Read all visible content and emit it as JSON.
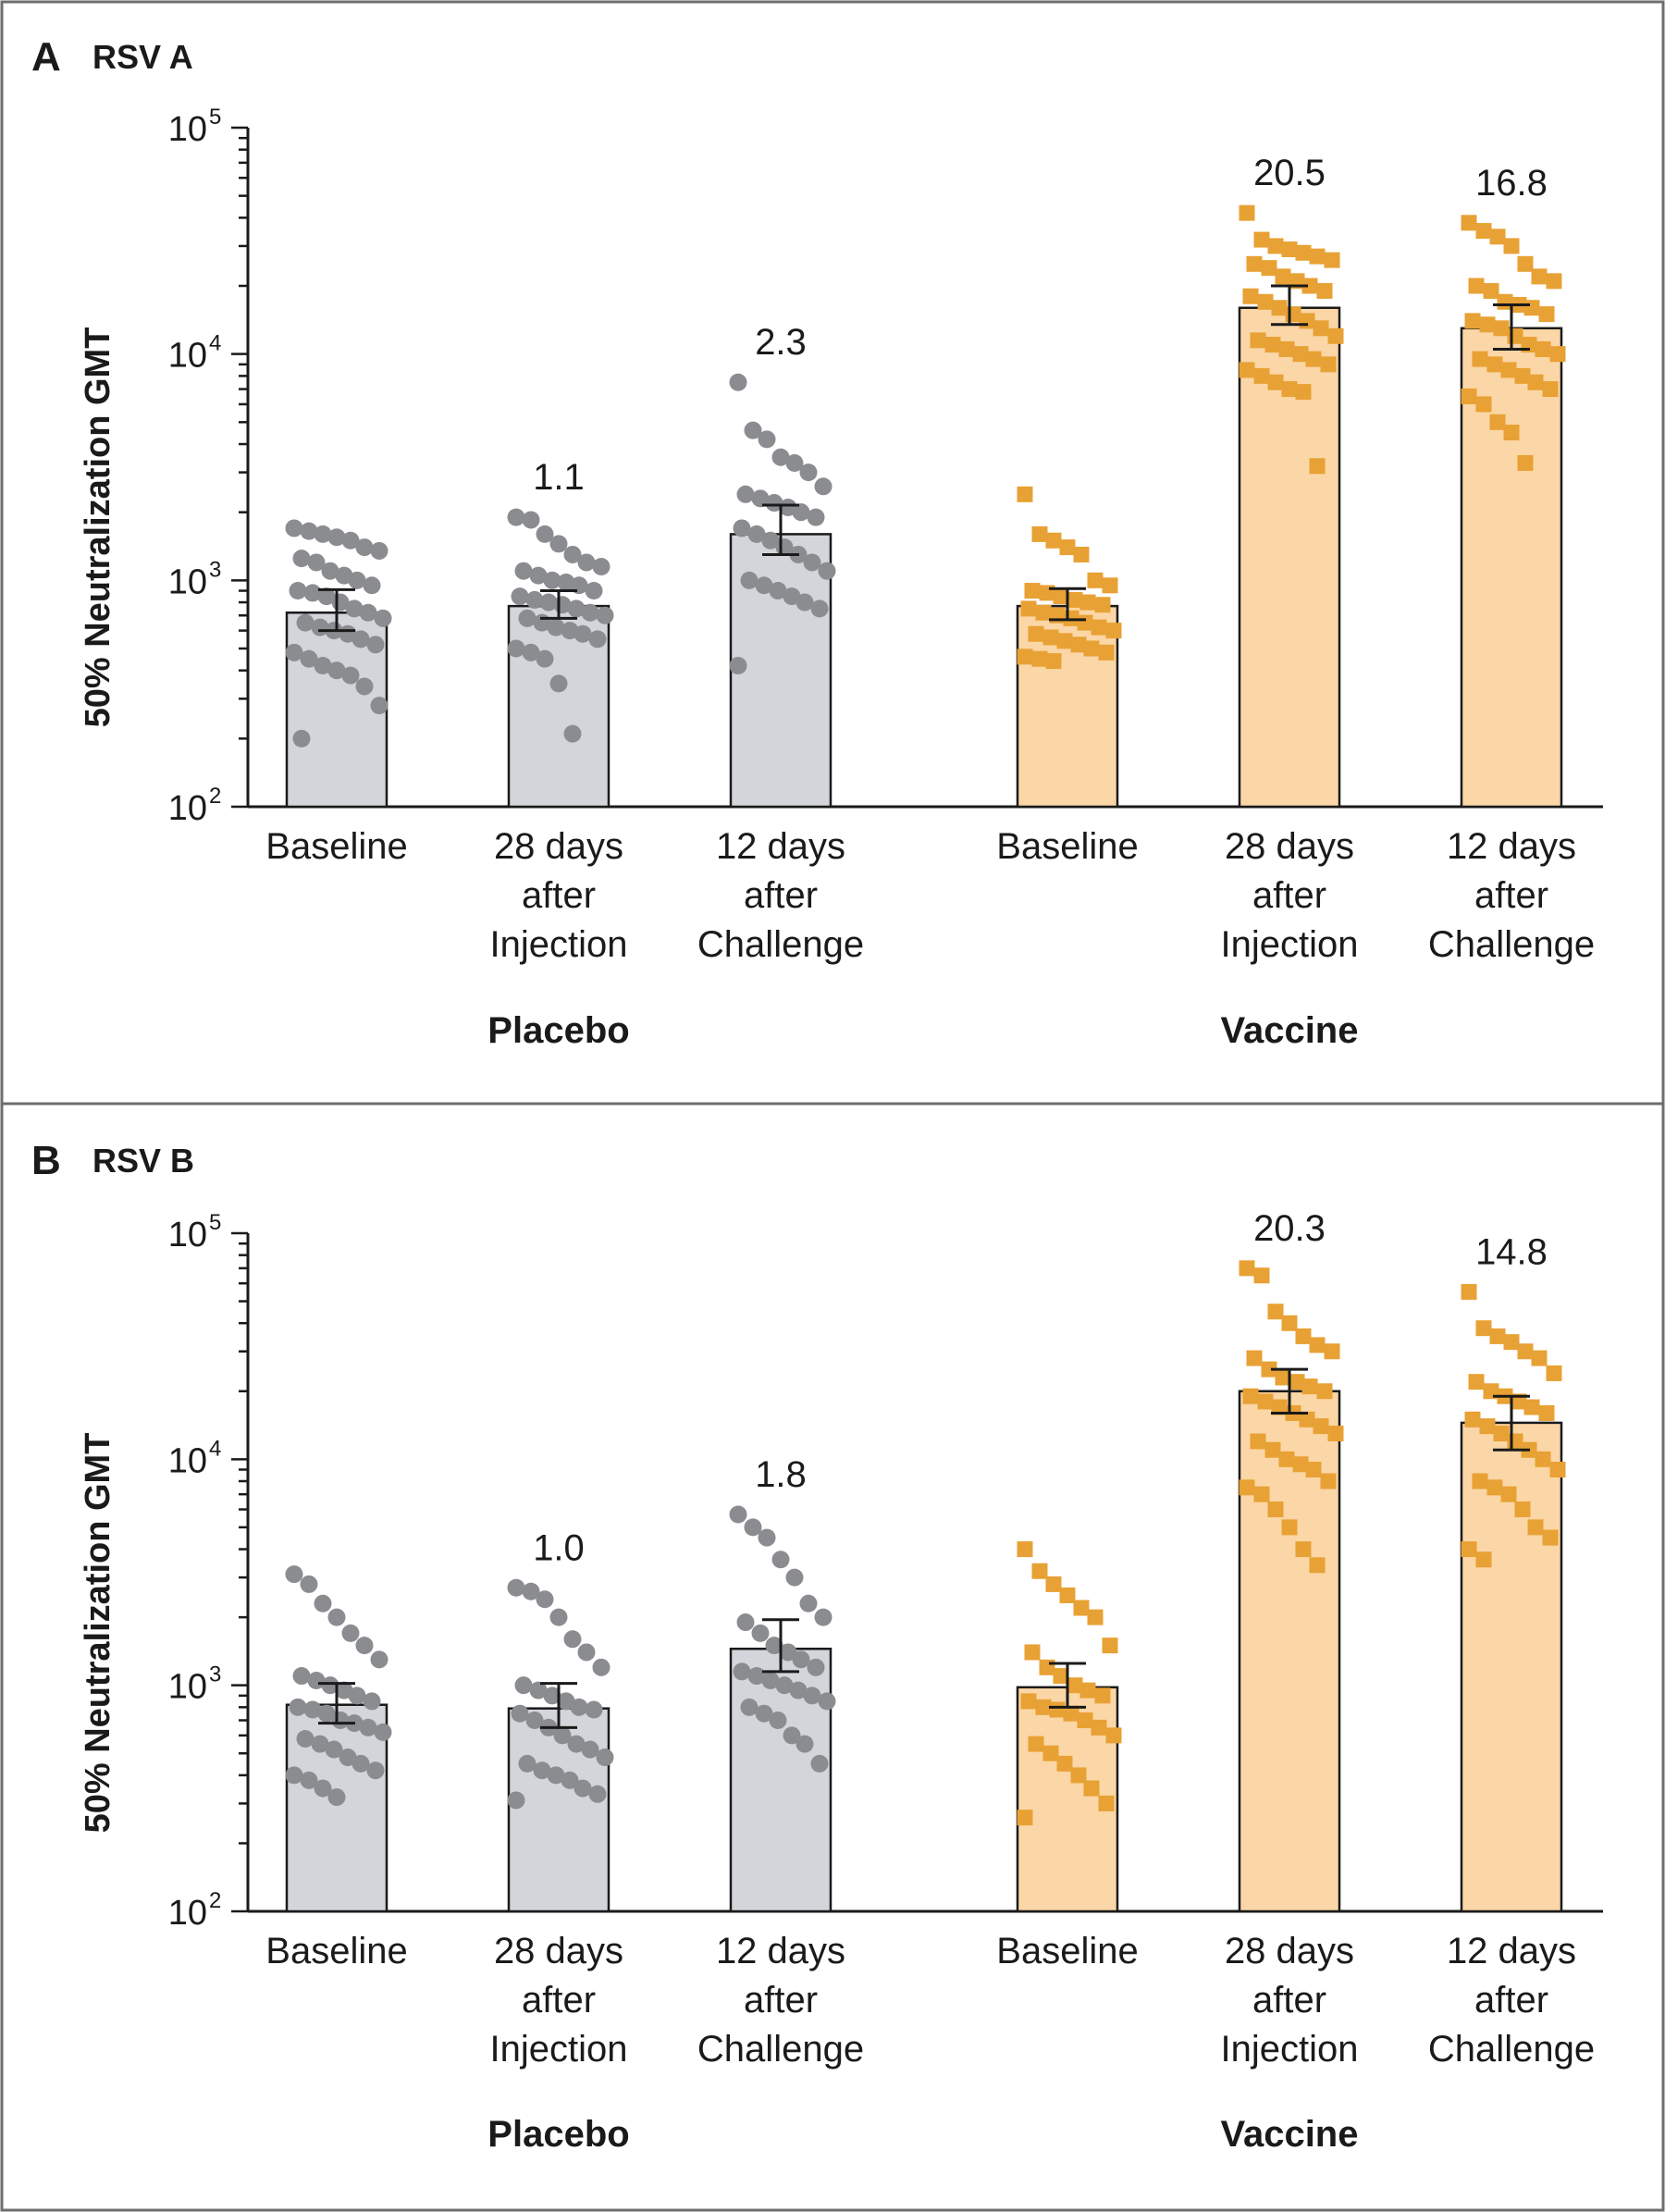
{
  "chart_data": [
    {
      "type": "bar",
      "panel_letter": "A",
      "title": "RSV A",
      "ylabel": "50% Neutralization GMT",
      "yscale": "log",
      "ylim": [
        100,
        100000
      ],
      "yticks": [
        "10",
        "10",
        "10",
        "10"
      ],
      "yticks_exponent": [
        "2",
        "3",
        "4",
        "5"
      ],
      "categories": [
        "Baseline",
        "28 days after Injection",
        "12 days after Challenge",
        "Baseline",
        "28 days after Injection",
        "12 days after Challenge"
      ],
      "category_lines": [
        [
          "Baseline"
        ],
        [
          "28 days",
          "after",
          "Injection"
        ],
        [
          "12 days",
          "after",
          "Challenge"
        ],
        [
          "Baseline"
        ],
        [
          "28 days",
          "after",
          "Injection"
        ],
        [
          "12 days",
          "after",
          "Challenge"
        ]
      ],
      "groups": [
        "Placebo",
        "Vaccine"
      ],
      "group_of_category": [
        0,
        0,
        0,
        1,
        1,
        1
      ],
      "series_colors": [
        "#d3d5db",
        "#fbd6a6"
      ],
      "point_colors": [
        "#8a8c90",
        "#e8a134"
      ],
      "point_markers": [
        "circle",
        "circle",
        "circle",
        "square",
        "square",
        "square"
      ],
      "values": [
        720,
        770,
        1600,
        770,
        16000,
        13000
      ],
      "error_low": [
        600,
        680,
        1300,
        670,
        13500,
        10500
      ],
      "error_high": [
        910,
        900,
        2150,
        920,
        20000,
        16500
      ],
      "data_labels": [
        "",
        "1.1",
        "2.3",
        "",
        "20.5",
        "16.8"
      ],
      "points": [
        [
          1700,
          1650,
          1600,
          1550,
          1500,
          1400,
          1350,
          1250,
          1200,
          1100,
          1050,
          1000,
          950,
          900,
          880,
          850,
          800,
          750,
          720,
          680,
          650,
          620,
          600,
          580,
          550,
          520,
          480,
          450,
          420,
          400,
          380,
          340,
          280,
          200
        ],
        [
          1900,
          1850,
          1600,
          1450,
          1300,
          1200,
          1150,
          1100,
          1050,
          1000,
          980,
          950,
          900,
          850,
          820,
          800,
          780,
          750,
          720,
          700,
          680,
          650,
          620,
          600,
          580,
          550,
          500,
          480,
          450,
          350,
          210
        ],
        [
          7500,
          4600,
          4200,
          3500,
          3300,
          3000,
          2600,
          2400,
          2300,
          2200,
          2100,
          2000,
          1900,
          1700,
          1600,
          1500,
          1400,
          1300,
          1200,
          1100,
          1000,
          950,
          900,
          850,
          800,
          750,
          420
        ],
        [
          2400,
          1600,
          1500,
          1400,
          1300,
          1000,
          950,
          900,
          880,
          850,
          820,
          800,
          780,
          750,
          720,
          700,
          680,
          650,
          620,
          600,
          580,
          560,
          540,
          520,
          500,
          480,
          460,
          450,
          440
        ],
        [
          42000,
          32000,
          30000,
          29000,
          28000,
          27000,
          26000,
          25000,
          24000,
          22000,
          21000,
          20000,
          19000,
          18000,
          17000,
          16000,
          15000,
          14000,
          13000,
          12000,
          11500,
          11000,
          10500,
          10000,
          9500,
          9000,
          8500,
          8000,
          7500,
          7000,
          6800,
          3200
        ],
        [
          38000,
          35000,
          33000,
          30000,
          25000,
          22000,
          21000,
          20000,
          19000,
          17000,
          16500,
          16000,
          15000,
          14000,
          13500,
          13000,
          12000,
          11000,
          10500,
          10000,
          9500,
          9000,
          8500,
          8000,
          7500,
          7000,
          6500,
          6000,
          5000,
          4500,
          3300
        ]
      ]
    },
    {
      "type": "bar",
      "panel_letter": "B",
      "title": "RSV B",
      "ylabel": "50% Neutralization GMT",
      "yscale": "log",
      "ylim": [
        100,
        100000
      ],
      "yticks": [
        "10",
        "10",
        "10",
        "10"
      ],
      "yticks_exponent": [
        "2",
        "3",
        "4",
        "5"
      ],
      "categories": [
        "Baseline",
        "28 days after Injection",
        "12 days after Challenge",
        "Baseline",
        "28 days after Injection",
        "12 days after Challenge"
      ],
      "category_lines": [
        [
          "Baseline"
        ],
        [
          "28 days",
          "after",
          "Injection"
        ],
        [
          "12 days",
          "after",
          "Challenge"
        ],
        [
          "Baseline"
        ],
        [
          "28 days",
          "after",
          "Injection"
        ],
        [
          "12 days",
          "after",
          "Challenge"
        ]
      ],
      "groups": [
        "Placebo",
        "Vaccine"
      ],
      "group_of_category": [
        0,
        0,
        0,
        1,
        1,
        1
      ],
      "series_colors": [
        "#d3d5db",
        "#fbd6a6"
      ],
      "point_colors": [
        "#8a8c90",
        "#e8a134"
      ],
      "point_markers": [
        "circle",
        "circle",
        "circle",
        "square",
        "square",
        "square"
      ],
      "values": [
        820,
        790,
        1450,
        980,
        20000,
        14500
      ],
      "error_low": [
        680,
        650,
        1150,
        800,
        16000,
        11000
      ],
      "error_high": [
        1020,
        1020,
        1950,
        1250,
        25000,
        19000
      ],
      "data_labels": [
        "",
        "1.0",
        "1.8",
        "",
        "20.3",
        "14.8"
      ],
      "points": [
        [
          3100,
          2800,
          2300,
          2000,
          1700,
          1500,
          1300,
          1100,
          1050,
          1000,
          950,
          900,
          850,
          800,
          780,
          750,
          700,
          680,
          650,
          620,
          580,
          550,
          520,
          480,
          450,
          420,
          400,
          380,
          350,
          320
        ],
        [
          2700,
          2600,
          2400,
          2000,
          1600,
          1400,
          1200,
          1000,
          950,
          900,
          850,
          800,
          780,
          750,
          700,
          650,
          600,
          550,
          520,
          480,
          450,
          420,
          400,
          380,
          350,
          330,
          310
        ],
        [
          5700,
          5000,
          4500,
          3600,
          3000,
          2300,
          2000,
          1900,
          1700,
          1500,
          1400,
          1300,
          1200,
          1150,
          1100,
          1050,
          1000,
          950,
          900,
          850,
          800,
          750,
          700,
          600,
          550,
          450
        ],
        [
          4000,
          3200,
          2800,
          2500,
          2200,
          2000,
          1500,
          1400,
          1200,
          1100,
          1000,
          950,
          900,
          850,
          800,
          780,
          750,
          700,
          650,
          600,
          550,
          500,
          450,
          400,
          350,
          300,
          260
        ],
        [
          70000,
          65000,
          45000,
          40000,
          35000,
          32000,
          30000,
          28000,
          25000,
          23000,
          22000,
          21000,
          20000,
          19000,
          18000,
          17000,
          16000,
          15000,
          14000,
          13000,
          12000,
          11000,
          10000,
          9500,
          9000,
          8000,
          7500,
          7000,
          6000,
          5000,
          4000,
          3400
        ],
        [
          55000,
          38000,
          35000,
          33000,
          30000,
          28000,
          24000,
          22000,
          20000,
          19000,
          18000,
          17000,
          16000,
          15000,
          14000,
          13000,
          12000,
          11000,
          10000,
          9000,
          8000,
          7500,
          7000,
          6000,
          5000,
          4500,
          4000,
          3600
        ]
      ]
    }
  ]
}
